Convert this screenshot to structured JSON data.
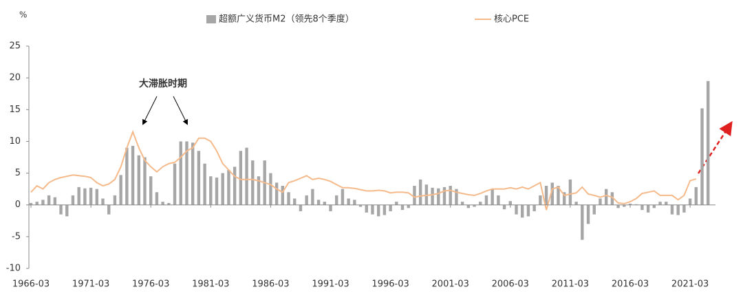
{
  "chart_data": {
    "type": "bar_line",
    "y_unit": "%",
    "annotation": "大滞胀时期",
    "categories": [
      "1966-03",
      null,
      null,
      null,
      null,
      null,
      null,
      null,
      null,
      null,
      "1971-03",
      null,
      null,
      null,
      null,
      null,
      null,
      null,
      null,
      null,
      "1976-03",
      null,
      null,
      null,
      null,
      null,
      null,
      null,
      null,
      null,
      "1981-03",
      null,
      null,
      null,
      null,
      null,
      null,
      null,
      null,
      null,
      "1986-03",
      null,
      null,
      null,
      null,
      null,
      null,
      null,
      null,
      null,
      "1991-03",
      null,
      null,
      null,
      null,
      null,
      null,
      null,
      null,
      null,
      "1996-03",
      null,
      null,
      null,
      null,
      null,
      null,
      null,
      null,
      null,
      "2001-03",
      null,
      null,
      null,
      null,
      null,
      null,
      null,
      null,
      null,
      "2006-03",
      null,
      null,
      null,
      null,
      null,
      null,
      null,
      null,
      null,
      "2011-03",
      null,
      null,
      null,
      null,
      null,
      null,
      null,
      null,
      null,
      "2016-03",
      null,
      null,
      null,
      null,
      null,
      null,
      null,
      null,
      null,
      "2021-03",
      null,
      null,
      null
    ],
    "series": [
      {
        "name": "超额广义货币M2（领先8个季度）",
        "kind": "bar",
        "color": "#a6a6a6",
        "values": [
          0.3,
          0.5,
          0.8,
          1.5,
          1.2,
          -1.5,
          -1.8,
          1.5,
          2.8,
          2.6,
          2.7,
          2.5,
          1.0,
          -1.5,
          1.5,
          4.7,
          9.0,
          9.3,
          7.8,
          7.5,
          4.5,
          2.0,
          0.5,
          0.3,
          6.5,
          10.0,
          10.0,
          9.8,
          8.5,
          6.5,
          4.5,
          4.3,
          5.0,
          5.5,
          6.0,
          8.5,
          9.0,
          7.0,
          4.5,
          7.0,
          5.0,
          3.5,
          3.0,
          2.0,
          1.0,
          -1.0,
          1.5,
          2.5,
          0.8,
          0.5,
          -1.0,
          1.5,
          2.5,
          1.0,
          0.8,
          -0.3,
          -1.2,
          -1.5,
          -1.8,
          -1.6,
          -1.0,
          0.5,
          -0.8,
          -0.5,
          3.0,
          4.0,
          3.2,
          2.7,
          2.6,
          2.8,
          3.0,
          2.5,
          0.5,
          -0.5,
          -0.3,
          0.5,
          1.5,
          2.5,
          1.5,
          -0.7,
          0.6,
          -1.5,
          -2.0,
          -1.8,
          -1.0,
          1.5,
          3.0,
          3.5,
          3.0,
          2.0,
          4.0,
          0.5,
          -5.5,
          -3.0,
          -1.5,
          1.0,
          2.5,
          2.0,
          -0.5,
          -0.3,
          0.2,
          0.1,
          -0.8,
          -1.2,
          -0.5,
          0.5,
          0.5,
          -1.5,
          -1.6,
          -1.2,
          1.0,
          2.8,
          15.2,
          19.5
        ]
      },
      {
        "name": "核心PCE",
        "kind": "line",
        "color": "#f5b98a",
        "values": [
          2.0,
          3.0,
          2.5,
          3.5,
          4.0,
          4.3,
          4.5,
          4.7,
          4.6,
          4.5,
          4.3,
          3.5,
          3.0,
          3.3,
          4.0,
          6.0,
          9.0,
          11.5,
          9.0,
          7.0,
          6.0,
          5.2,
          6.0,
          6.5,
          6.7,
          7.5,
          8.5,
          9.0,
          10.5,
          10.5,
          10.0,
          8.5,
          6.5,
          5.5,
          4.5,
          4.0,
          4.0,
          4.0,
          3.8,
          3.5,
          3.2,
          2.5,
          2.0,
          3.5,
          3.8,
          4.2,
          4.6,
          4.0,
          4.2,
          4.0,
          3.7,
          3.2,
          2.7,
          2.7,
          2.6,
          2.4,
          2.2,
          2.2,
          2.3,
          2.2,
          1.9,
          2.0,
          2.0,
          1.9,
          1.2,
          1.4,
          1.5,
          1.6,
          1.8,
          2.2,
          2.3,
          2.0,
          1.8,
          1.6,
          1.5,
          1.8,
          2.2,
          2.5,
          2.5,
          2.5,
          2.7,
          2.5,
          2.8,
          2.5,
          3.0,
          3.5,
          -0.8,
          2.5,
          2.8,
          1.5,
          1.7,
          1.9,
          2.8,
          1.7,
          1.5,
          1.2,
          1.5,
          1.2,
          0.3,
          0.2,
          0.5,
          1.0,
          1.8,
          2.0,
          2.2,
          1.5,
          1.5,
          1.5,
          0.8,
          1.5,
          3.8,
          4.1,
          null,
          null
        ]
      }
    ],
    "ylim": [
      -10,
      25
    ],
    "yticks": [
      -10,
      -5,
      0,
      5,
      10,
      15,
      20,
      25
    ]
  }
}
